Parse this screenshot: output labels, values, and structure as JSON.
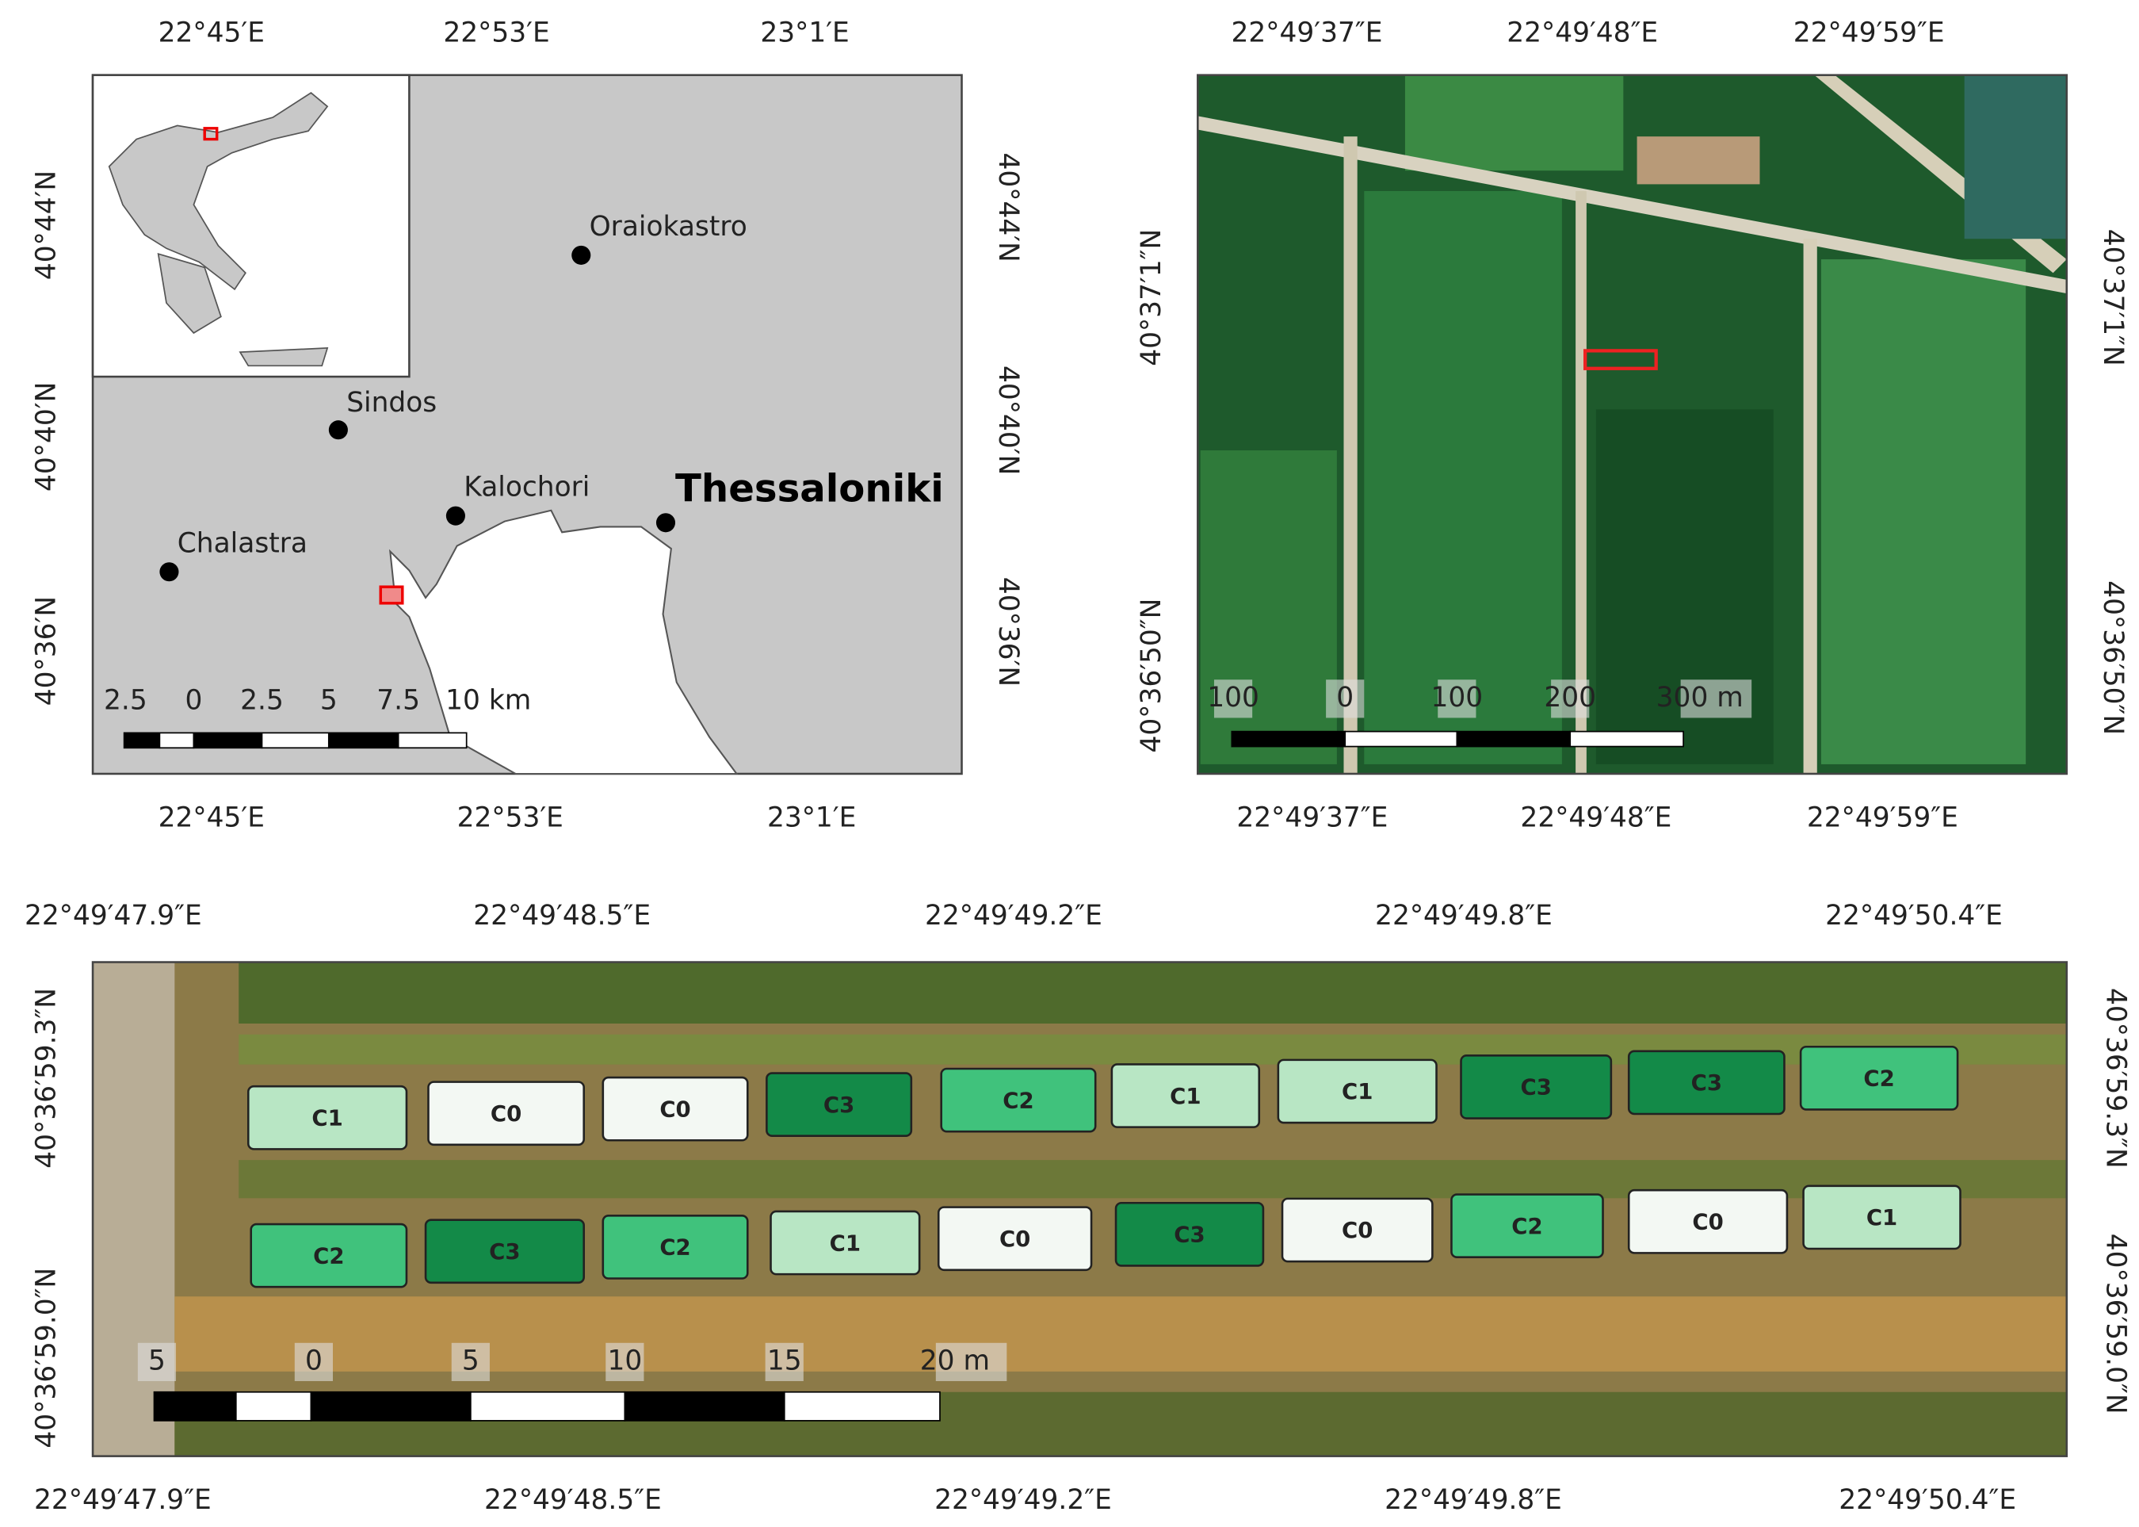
{
  "map_overview": {
    "top_labels": [
      "22°45′E",
      "22°53′E",
      "23°1′E"
    ],
    "bottom_labels": [
      "22°45′E",
      "22°53′E",
      "23°1′E"
    ],
    "left_labels": [
      "40°44′N",
      "40°40′N",
      "40°36′N"
    ],
    "right_labels": [
      "40°44′N",
      "40°40′N",
      "40°36′N"
    ],
    "places": [
      "Oraiokastro",
      "Sindos",
      "Kalochori",
      "Thessaloniki",
      "Chalastra"
    ],
    "scale_labels": [
      "2.5",
      "0",
      "2.5",
      "5",
      "7.5",
      "10 km"
    ]
  },
  "map_fields": {
    "top_labels": [
      "22°49′37″E",
      "22°49′48″E",
      "22°49′59″E"
    ],
    "bottom_labels": [
      "22°49′37″E",
      "22°49′48″E",
      "22°49′59″E"
    ],
    "left_labels": [
      "40°37′1″N",
      "40°36′50″N"
    ],
    "right_labels": [
      "40°37′1″N",
      "40°36′50″N"
    ],
    "scale_labels": [
      "100",
      "0",
      "100",
      "200",
      "300 m"
    ]
  },
  "map_plots": {
    "top_labels": [
      "22°49′47.9″E",
      "22°49′48.5″E",
      "22°49′49.2″E",
      "22°49′49.8″E",
      "22°49′50.4″E"
    ],
    "bottom_labels": [
      "22°49′47.9″E",
      "22°49′48.5″E",
      "22°49′49.2″E",
      "22°49′49.8″E",
      "22°49′50.4″E"
    ],
    "left_labels": [
      "40°36′59.3″N",
      "40°36′59.0″N"
    ],
    "right_labels": [
      "40°36′59.3″N",
      "40°36′59.0″N"
    ],
    "scale_labels": [
      "5",
      "0",
      "5",
      "10",
      "15",
      "20 m"
    ],
    "top_row": [
      "C1",
      "C0",
      "C0",
      "C3",
      "C2",
      "C1",
      "C1",
      "C3",
      "C3",
      "C2"
    ],
    "bottom_row": [
      "C2",
      "C3",
      "C2",
      "C1",
      "C0",
      "C3",
      "C0",
      "C2",
      "C0",
      "C1"
    ],
    "plot_colors": {
      "C0": "#f3f8f3",
      "C1": "#b8e6c4",
      "C2": "#40c27c",
      "C3": "#138a48"
    }
  }
}
